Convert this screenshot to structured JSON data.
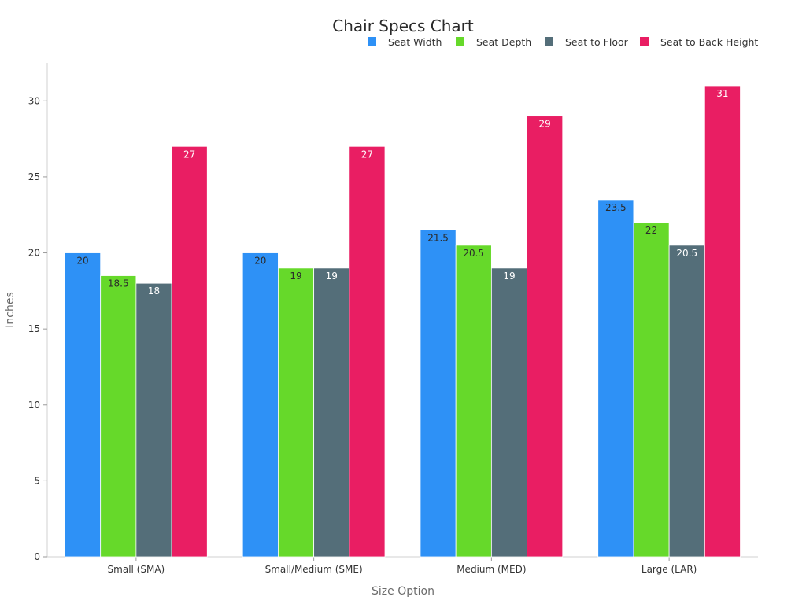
{
  "chart_data": {
    "type": "bar",
    "title": "Chair Specs Chart",
    "xlabel": "Size Option",
    "ylabel": "Inches",
    "ylim": [
      0,
      32.5
    ],
    "yticks": [
      0,
      5,
      10,
      15,
      20,
      25,
      30
    ],
    "legend_position": "top-right",
    "grid": false,
    "categories": [
      "Small (SMA)",
      "Small/Medium (SME)",
      "Medium (MED)",
      "Large (LAR)"
    ],
    "series": [
      {
        "name": "Seat Width",
        "color": "#2e91f6",
        "label_color": "#2b2b2b",
        "values": [
          20,
          20,
          21.5,
          23.5
        ]
      },
      {
        "name": "Seat Depth",
        "color": "#66d92a",
        "label_color": "#2b2b2b",
        "values": [
          18.5,
          19,
          20.5,
          22
        ]
      },
      {
        "name": "Seat to Floor",
        "color": "#546e79",
        "label_color": "#ffffff",
        "values": [
          18,
          19,
          19,
          20.5
        ]
      },
      {
        "name": "Seat to Back Height",
        "color": "#e91e63",
        "label_color": "#ffffff",
        "values": [
          27,
          27,
          29,
          31
        ]
      }
    ]
  }
}
